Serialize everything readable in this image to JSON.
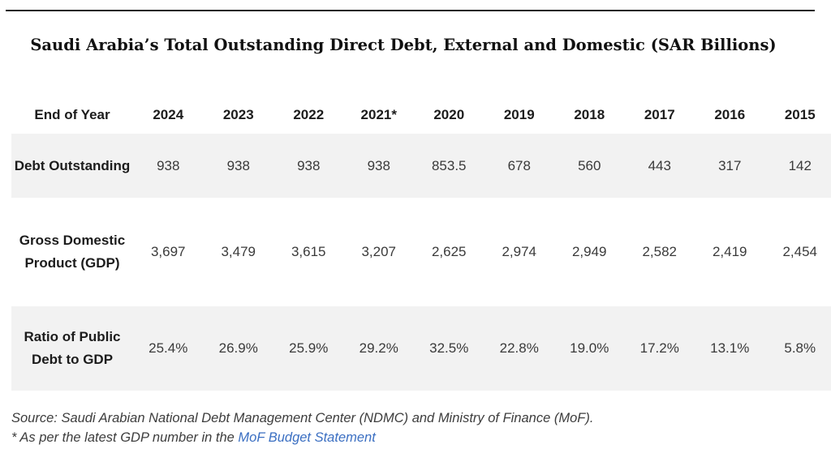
{
  "title": "Saudi Arabia’s Total Outstanding Direct Debt, External and Domestic (SAR Billions)",
  "table": {
    "header_label": "End of Year",
    "years": [
      "2024",
      "2023",
      "2022",
      "2021*",
      "2020",
      "2019",
      "2018",
      "2017",
      "2016",
      "2015"
    ],
    "rows": [
      {
        "label": "Debt Outstanding",
        "values": [
          "938",
          "938",
          "938",
          "938",
          "853.5",
          "678",
          "560",
          "443",
          "317",
          "142"
        ]
      },
      {
        "label": "Gross Domestic Product (GDP)",
        "values": [
          "3,697",
          "3,479",
          "3,615",
          "3,207",
          "2,625",
          "2,974",
          "2,949",
          "2,582",
          "2,419",
          "2,454"
        ]
      },
      {
        "label": "Ratio of Public Debt to GDP",
        "values": [
          "25.4%",
          "26.9%",
          "25.9%",
          "29.2%",
          "32.5%",
          "22.8%",
          "19.0%",
          "17.2%",
          "13.1%",
          "5.8%"
        ]
      }
    ]
  },
  "notes": {
    "source": "Source: Saudi Arabian National Debt Management Center (NDMC) and Ministry of Finance (MoF).",
    "footnote_prefix": "* As per the latest GDP number in the ",
    "footnote_link": "MoF Budget Statement"
  },
  "colors": {
    "row_shade": "#f2f2f2",
    "link": "#3b6fc2"
  }
}
